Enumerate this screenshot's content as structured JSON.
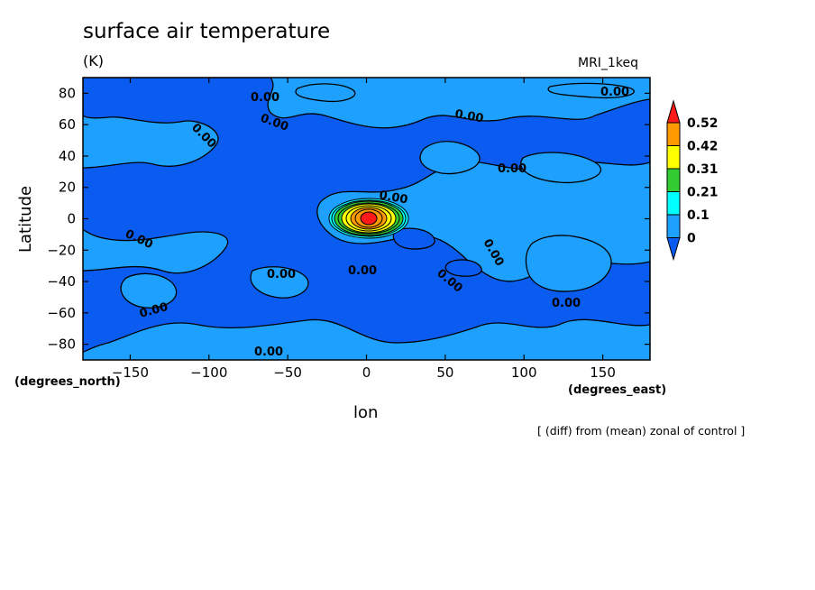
{
  "chart_data": {
    "type": "heatmap",
    "title": "surface air temperature",
    "units": "(K)",
    "model": "MRI_1keq",
    "ylabel": "Latitude",
    "ylabel_units": "(degrees_north)",
    "xlabel": "lon",
    "xlabel_units": "(degrees_east)",
    "note": "[ (diff) from (mean) zonal of control ]",
    "xlim": [
      -180,
      180
    ],
    "ylim": [
      -90,
      90
    ],
    "x_ticks": [
      -150,
      -100,
      -50,
      0,
      50,
      100,
      150
    ],
    "x_tick_labels": [
      "−150",
      "−100",
      "−50",
      "0",
      "50",
      "100",
      "150"
    ],
    "y_ticks": [
      80,
      60,
      40,
      20,
      0,
      -20,
      -40,
      -60,
      -80
    ],
    "y_tick_labels": [
      "80",
      "60",
      "40",
      "20",
      "0",
      "−20",
      "−40",
      "−60",
      "−80"
    ],
    "colorbar": {
      "levels": [
        "0.52",
        "0.42",
        "0.31",
        "0.21",
        "0.1",
        "0"
      ],
      "colors": [
        "#ff1a1a",
        "#ff9900",
        "#ffff00",
        "#33cc33",
        "#00ffff",
        "#1ea0ff",
        "#0a5cf0"
      ]
    },
    "contour_labels": [
      "0.00",
      "0.00",
      "0.00",
      "0.00",
      "0.00",
      "0.00",
      "0.00",
      "0.00",
      "0.00",
      "0.00",
      "0.00",
      "0.00",
      "0.00",
      "0.00",
      "0.00"
    ],
    "hotspot": {
      "lon": 0,
      "lat": 0,
      "max_value": 0.52
    }
  }
}
